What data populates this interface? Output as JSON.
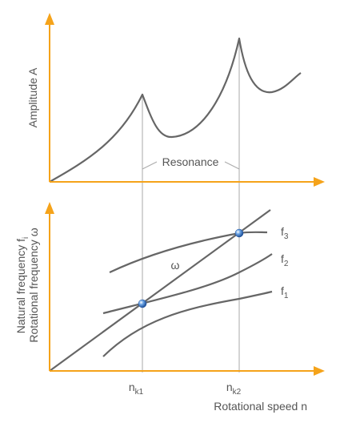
{
  "colors": {
    "axis": "#f5a31a",
    "curve": "#666666",
    "guide": "#aaaaaa",
    "text": "#555555",
    "point": "#2f6fbf"
  },
  "top_panel": {
    "y_axis_label": "Amplitude A",
    "resonance_label": "Resonance"
  },
  "bottom_panel": {
    "y_axis_label_1": "Natural frequency f",
    "y_axis_label_1_sub": "i",
    "y_axis_label_2": "Rotational frequency ω",
    "x_axis_label": "Rotational speed n",
    "omega_label": "ω",
    "curves": [
      {
        "name": "f",
        "sub": "3"
      },
      {
        "name": "f",
        "sub": "2"
      },
      {
        "name": "f",
        "sub": "1"
      }
    ],
    "critical_speeds": [
      {
        "name": "n",
        "sub": "k1"
      },
      {
        "name": "n",
        "sub": "k2"
      }
    ]
  }
}
